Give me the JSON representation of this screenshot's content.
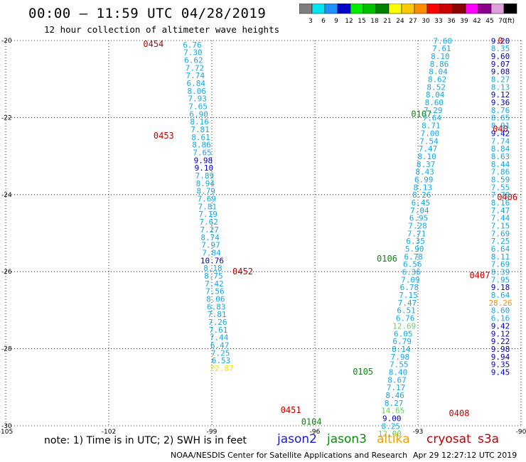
{
  "header": {
    "title": "00:00 — 11:59 UTC 04/28/2019",
    "subtitle": "12 hour collection of altimeter wave heights"
  },
  "color_scale": {
    "unit_label": "(ft)",
    "bins": [
      {
        "label": "3",
        "color": "#7f7f7f"
      },
      {
        "label": "6",
        "color": "#00e5ee"
      },
      {
        "label": "9",
        "color": "#1e90ff"
      },
      {
        "label": "12",
        "color": "#0000cd"
      },
      {
        "label": "15",
        "color": "#00ee00"
      },
      {
        "label": "18",
        "color": "#00c000"
      },
      {
        "label": "21",
        "color": "#008000"
      },
      {
        "label": "24",
        "color": "#ffff00"
      },
      {
        "label": "27",
        "color": "#ffc800"
      },
      {
        "label": "30",
        "color": "#ff8c00"
      },
      {
        "label": "33",
        "color": "#ff0000"
      },
      {
        "label": "36",
        "color": "#cd0000"
      },
      {
        "label": "39",
        "color": "#8b0000"
      },
      {
        "label": "42",
        "color": "#ff00ff"
      },
      {
        "label": "45",
        "color": "#8b008b"
      },
      {
        "label": "70",
        "color": "#dda0dd"
      },
      {
        "label": "",
        "color": "#000000"
      }
    ]
  },
  "chart_data": {
    "type": "scatter",
    "xlim": [
      -105,
      -90
    ],
    "ylim": [
      -30,
      -20
    ],
    "xticks": [
      "-105",
      "-102",
      "-99",
      "-96",
      "-93",
      "-90"
    ],
    "yticks": [
      "-20",
      "-22",
      "-24",
      "-26",
      "-28",
      "-30"
    ],
    "grid": true,
    "series": [
      {
        "name": "jason2",
        "color": "#1a1ad8",
        "points": []
      },
      {
        "name": "jason3",
        "color": "#0a8a0a",
        "points": [
          {
            "x": -93.9,
            "y": -25.74,
            "label": "0106"
          },
          {
            "x": -92.9,
            "y": -21.98,
            "label": "0107"
          },
          {
            "x": -94.6,
            "y": -28.67,
            "label": "0105"
          },
          {
            "x": -96.1,
            "y": -29.97,
            "label": "0104"
          }
        ]
      },
      {
        "name": "altika",
        "color": "#f0a000",
        "points": []
      },
      {
        "name": "cryosat",
        "color": "#c00000",
        "points": [
          {
            "x": -100.7,
            "y": -20.17,
            "label": "0454"
          },
          {
            "x": -100.4,
            "y": -22.55,
            "label": "0453"
          },
          {
            "x": -98.1,
            "y": -26.07,
            "label": "0452"
          },
          {
            "x": -96.7,
            "y": -29.67,
            "label": "0451"
          },
          {
            "x": -90.6,
            "y": -20.08,
            "label": "0"
          },
          {
            "x": -90.6,
            "y": -22.37,
            "label": "040"
          },
          {
            "x": -90.4,
            "y": -24.14,
            "label": "0406"
          },
          {
            "x": -91.2,
            "y": -26.17,
            "label": "0407"
          },
          {
            "x": -91.8,
            "y": -29.75,
            "label": "0408"
          }
        ]
      },
      {
        "name": "s3a",
        "color": "#c00000",
        "points": []
      },
      {
        "name": "track-a",
        "points": [
          {
            "x": -99.57,
            "y": -20.18,
            "label": "6.76"
          },
          {
            "x": -99.55,
            "y": -20.38,
            "label": "7.30"
          },
          {
            "x": -99.53,
            "y": -20.58,
            "label": "6.62"
          },
          {
            "x": -99.5,
            "y": -20.78,
            "label": "7.72"
          },
          {
            "x": -99.48,
            "y": -20.98,
            "label": "7.74"
          },
          {
            "x": -99.46,
            "y": -21.18,
            "label": "6.84"
          },
          {
            "x": -99.44,
            "y": -21.38,
            "label": "8.06"
          },
          {
            "x": -99.42,
            "y": -21.58,
            "label": "7.93"
          },
          {
            "x": -99.4,
            "y": -21.78,
            "label": "7.65"
          },
          {
            "x": -99.38,
            "y": -21.98,
            "label": "6.90"
          },
          {
            "x": -99.36,
            "y": -22.18,
            "label": "8.16"
          },
          {
            "x": -99.34,
            "y": -22.38,
            "label": "7.81"
          },
          {
            "x": -99.32,
            "y": -22.58,
            "label": "8.61"
          },
          {
            "x": -99.3,
            "y": -22.78,
            "label": "8.86"
          },
          {
            "x": -99.28,
            "y": -22.98,
            "label": "7.65"
          },
          {
            "x": -99.25,
            "y": -23.18,
            "label": "9.98"
          },
          {
            "x": -99.23,
            "y": -23.38,
            "label": "9.10"
          },
          {
            "x": -99.21,
            "y": -23.58,
            "label": "7.89"
          },
          {
            "x": -99.19,
            "y": -23.78,
            "label": "8.94"
          },
          {
            "x": -99.17,
            "y": -23.98,
            "label": "8.79"
          },
          {
            "x": -99.15,
            "y": -24.18,
            "label": "7.69"
          },
          {
            "x": -99.13,
            "y": -24.38,
            "label": "7.81"
          },
          {
            "x": -99.11,
            "y": -24.58,
            "label": "7.19"
          },
          {
            "x": -99.09,
            "y": -24.78,
            "label": "7.62"
          },
          {
            "x": -99.07,
            "y": -24.98,
            "label": "7.27"
          },
          {
            "x": -99.05,
            "y": -25.18,
            "label": "8.74"
          },
          {
            "x": -99.03,
            "y": -25.38,
            "label": "7.97"
          },
          {
            "x": -99.01,
            "y": -25.58,
            "label": "7.84"
          },
          {
            "x": -98.99,
            "y": -25.78,
            "label": "10.76"
          },
          {
            "x": -98.97,
            "y": -25.98,
            "label": "8.18"
          },
          {
            "x": -98.95,
            "y": -26.18,
            "label": "8.75"
          },
          {
            "x": -98.93,
            "y": -26.38,
            "label": "7.42"
          },
          {
            "x": -98.91,
            "y": -26.58,
            "label": "7.56"
          },
          {
            "x": -98.89,
            "y": -26.78,
            "label": "8.06"
          },
          {
            "x": -98.87,
            "y": -26.98,
            "label": "6.83"
          },
          {
            "x": -98.85,
            "y": -27.18,
            "label": "7.81"
          },
          {
            "x": -98.83,
            "y": -27.38,
            "label": "7.26"
          },
          {
            "x": -98.81,
            "y": -27.58,
            "label": "7.61"
          },
          {
            "x": -98.79,
            "y": -27.78,
            "label": "7.44"
          },
          {
            "x": -98.77,
            "y": -27.98,
            "label": "6.47"
          },
          {
            "x": -98.75,
            "y": -28.18,
            "label": "7.25"
          },
          {
            "x": -98.73,
            "y": -28.38,
            "label": "6.53"
          },
          {
            "x": -98.71,
            "y": -28.58,
            "label": "22.87"
          }
        ]
      },
      {
        "name": "track-b",
        "points": [
          {
            "x": -92.28,
            "y": -20.08,
            "label": "7.60"
          },
          {
            "x": -92.31,
            "y": -20.28,
            "label": "7.61"
          },
          {
            "x": -92.35,
            "y": -20.48,
            "label": "8.10"
          },
          {
            "x": -92.38,
            "y": -20.68,
            "label": "8.86"
          },
          {
            "x": -92.41,
            "y": -20.88,
            "label": "8.04"
          },
          {
            "x": -92.44,
            "y": -21.08,
            "label": "8.62"
          },
          {
            "x": -92.47,
            "y": -21.28,
            "label": "8.52"
          },
          {
            "x": -92.5,
            "y": -21.48,
            "label": "8.04"
          },
          {
            "x": -92.53,
            "y": -21.68,
            "label": "8.60"
          },
          {
            "x": -92.56,
            "y": -21.88,
            "label": "7.29"
          },
          {
            "x": -92.59,
            "y": -22.08,
            "label": "7.64"
          },
          {
            "x": -92.62,
            "y": -22.28,
            "label": "8.71"
          },
          {
            "x": -92.65,
            "y": -22.48,
            "label": "7.00"
          },
          {
            "x": -92.68,
            "y": -22.68,
            "label": "7.54"
          },
          {
            "x": -92.71,
            "y": -22.88,
            "label": "7.47"
          },
          {
            "x": -92.74,
            "y": -23.08,
            "label": "8.10"
          },
          {
            "x": -92.77,
            "y": -23.28,
            "label": "8.37"
          },
          {
            "x": -92.8,
            "y": -23.48,
            "label": "8.43"
          },
          {
            "x": -92.83,
            "y": -23.68,
            "label": "6.99"
          },
          {
            "x": -92.86,
            "y": -23.88,
            "label": "8.13"
          },
          {
            "x": -92.89,
            "y": -24.08,
            "label": "8.26"
          },
          {
            "x": -92.92,
            "y": -24.28,
            "label": "6.45"
          },
          {
            "x": -92.95,
            "y": -24.48,
            "label": "7.04"
          },
          {
            "x": -92.98,
            "y": -24.68,
            "label": "6.95"
          },
          {
            "x": -93.01,
            "y": -24.88,
            "label": "7.28"
          },
          {
            "x": -93.04,
            "y": -25.08,
            "label": "7.71"
          },
          {
            "x": -93.07,
            "y": -25.28,
            "label": "6.35"
          },
          {
            "x": -93.1,
            "y": -25.48,
            "label": "5.90"
          },
          {
            "x": -93.13,
            "y": -25.68,
            "label": "6.78"
          },
          {
            "x": -93.16,
            "y": -25.88,
            "label": "6.56"
          },
          {
            "x": -93.19,
            "y": -26.08,
            "label": "6.36"
          },
          {
            "x": -93.22,
            "y": -26.28,
            "label": "7.09"
          },
          {
            "x": -93.25,
            "y": -26.48,
            "label": "6.78"
          },
          {
            "x": -93.28,
            "y": -26.68,
            "label": "7.15"
          },
          {
            "x": -93.31,
            "y": -26.88,
            "label": "7.47"
          },
          {
            "x": -93.34,
            "y": -27.08,
            "label": "6.51"
          },
          {
            "x": -93.37,
            "y": -27.28,
            "label": "6.76"
          },
          {
            "x": -93.4,
            "y": -27.48,
            "label": "12.69"
          },
          {
            "x": -93.43,
            "y": -27.68,
            "label": "6.05"
          },
          {
            "x": -93.46,
            "y": -27.88,
            "label": "6.79"
          },
          {
            "x": -93.49,
            "y": -28.08,
            "label": "8.14"
          },
          {
            "x": -93.52,
            "y": -28.28,
            "label": "7.98"
          },
          {
            "x": -93.55,
            "y": -28.48,
            "label": "7.55"
          },
          {
            "x": -93.58,
            "y": -28.68,
            "label": "8.40"
          },
          {
            "x": -93.61,
            "y": -28.88,
            "label": "8.67"
          },
          {
            "x": -93.64,
            "y": -29.08,
            "label": "7.17"
          },
          {
            "x": -93.67,
            "y": -29.28,
            "label": "8.46"
          },
          {
            "x": -93.7,
            "y": -29.48,
            "label": "8.27"
          },
          {
            "x": -93.73,
            "y": -29.68,
            "label": "14.65"
          },
          {
            "x": -93.76,
            "y": -29.88,
            "label": "9.00"
          },
          {
            "x": -93.79,
            "y": -30.08,
            "label": "8.25"
          },
          {
            "x": -93.82,
            "y": -30.28,
            "label": "12.00"
          }
        ]
      },
      {
        "name": "track-c",
        "points": [
          {
            "x": -90.6,
            "y": -20.08,
            "label": "9.20"
          },
          {
            "x": -90.6,
            "y": -20.28,
            "label": "8.35"
          },
          {
            "x": -90.6,
            "y": -20.48,
            "label": "9.60"
          },
          {
            "x": -90.6,
            "y": -20.68,
            "label": "9.07"
          },
          {
            "x": -90.6,
            "y": -20.88,
            "label": "9.08"
          },
          {
            "x": -90.6,
            "y": -21.08,
            "label": "8.27"
          },
          {
            "x": -90.6,
            "y": -21.28,
            "label": "8.13"
          },
          {
            "x": -90.6,
            "y": -21.48,
            "label": "9.12"
          },
          {
            "x": -90.6,
            "y": -21.68,
            "label": "9.36"
          },
          {
            "x": -90.6,
            "y": -21.88,
            "label": "8.76"
          },
          {
            "x": -90.6,
            "y": -22.08,
            "label": "8.65"
          },
          {
            "x": -90.6,
            "y": -22.28,
            "label": "8.91"
          },
          {
            "x": -90.6,
            "y": -22.48,
            "label": "9.42"
          },
          {
            "x": -90.6,
            "y": -22.68,
            "label": "7.74"
          },
          {
            "x": -90.6,
            "y": -22.88,
            "label": "8.84"
          },
          {
            "x": -90.6,
            "y": -23.08,
            "label": "8.63"
          },
          {
            "x": -90.6,
            "y": -23.28,
            "label": "8.44"
          },
          {
            "x": -90.6,
            "y": -23.48,
            "label": "7.86"
          },
          {
            "x": -90.6,
            "y": -23.68,
            "label": "8.59"
          },
          {
            "x": -90.6,
            "y": -23.88,
            "label": "7.55"
          },
          {
            "x": -90.6,
            "y": -24.08,
            "label": "7.70"
          },
          {
            "x": -90.6,
            "y": -24.28,
            "label": "8.16"
          },
          {
            "x": -90.6,
            "y": -24.48,
            "label": "7.47"
          },
          {
            "x": -90.6,
            "y": -24.68,
            "label": "7.44"
          },
          {
            "x": -90.6,
            "y": -24.88,
            "label": "7.15"
          },
          {
            "x": -90.6,
            "y": -25.08,
            "label": "7.69"
          },
          {
            "x": -90.6,
            "y": -25.28,
            "label": "7.25"
          },
          {
            "x": -90.6,
            "y": -25.48,
            "label": "6.64"
          },
          {
            "x": -90.6,
            "y": -25.68,
            "label": "8.11"
          },
          {
            "x": -90.6,
            "y": -25.88,
            "label": "7.69"
          },
          {
            "x": -90.6,
            "y": -26.08,
            "label": "8.39"
          },
          {
            "x": -90.6,
            "y": -26.28,
            "label": "7.95"
          },
          {
            "x": -90.6,
            "y": -26.48,
            "label": "9.18"
          },
          {
            "x": -90.6,
            "y": -26.68,
            "label": "8.64"
          },
          {
            "x": -90.6,
            "y": -26.88,
            "label": "28.26"
          },
          {
            "x": -90.6,
            "y": -27.08,
            "label": "8.60"
          },
          {
            "x": -90.6,
            "y": -27.28,
            "label": "6.16"
          },
          {
            "x": -90.6,
            "y": -27.48,
            "label": "9.42"
          },
          {
            "x": -90.6,
            "y": -27.68,
            "label": "9.12"
          },
          {
            "x": -90.6,
            "y": -27.88,
            "label": "9.22"
          },
          {
            "x": -90.6,
            "y": -28.08,
            "label": "9.98"
          },
          {
            "x": -90.6,
            "y": -28.28,
            "label": "9.94"
          },
          {
            "x": -90.6,
            "y": -28.48,
            "label": "9.35"
          },
          {
            "x": -90.6,
            "y": -28.68,
            "label": "9.45"
          }
        ]
      }
    ]
  },
  "footer": {
    "note": "note: 1) Time is in UTC; 2) SWH is in feet",
    "sats": [
      {
        "label": "jason2",
        "color": "#1a1ad8"
      },
      {
        "label": "jason3",
        "color": "#0a8a0a"
      },
      {
        "label": "altika",
        "color": "#f0a000"
      },
      {
        "label": "cryosat",
        "color": "#c00000"
      },
      {
        "label": "s3a",
        "color": "#c00000"
      }
    ],
    "credit": "NOAA/NESDIS Center for Satellite Applications and Research",
    "timestamp": "Apr 29 12:27:12 UTC 2019"
  }
}
